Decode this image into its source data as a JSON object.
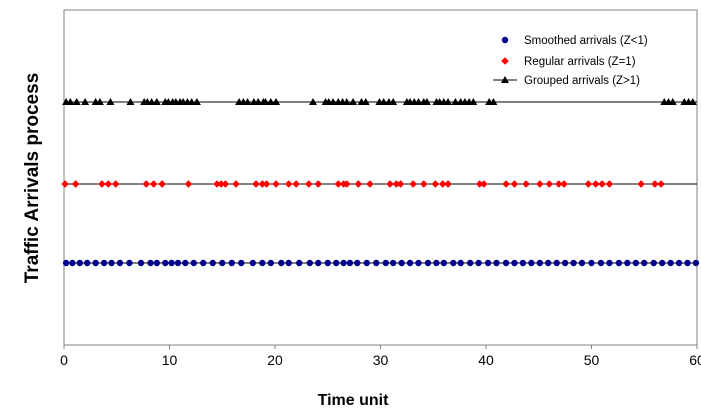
{
  "chart_data": {
    "type": "scatter",
    "title": "",
    "xlabel": "Time unit",
    "ylabel": "Traffic Arrivals process",
    "xlim": [
      0,
      60
    ],
    "xticks": [
      "0",
      "10",
      "20",
      "30",
      "40",
      "50",
      "60"
    ],
    "x_tick_values": [
      0,
      10,
      20,
      30,
      40,
      50,
      60
    ],
    "grid": false,
    "legend_position": "top-right",
    "series": [
      {
        "name": "Smoothed arrivals (Z<1)",
        "marker": "circle",
        "color": "#00008B",
        "line": true,
        "x": [
          0.2,
          0.8,
          1.5,
          2.2,
          3.0,
          3.8,
          4.5,
          5.3,
          6.2,
          7.3,
          8.2,
          8.8,
          9.6,
          10.2,
          10.8,
          11.5,
          12.3,
          13.2,
          14.1,
          15.0,
          15.9,
          16.8,
          17.9,
          18.8,
          19.6,
          20.6,
          21.3,
          22.3,
          23.3,
          24.1,
          25.0,
          25.8,
          26.5,
          27.1,
          27.8,
          28.7,
          29.6,
          30.5,
          31.2,
          32.0,
          32.8,
          33.6,
          34.5,
          35.3,
          36.0,
          36.9,
          37.6,
          38.5,
          39.3,
          40.2,
          41.0,
          41.9,
          42.7,
          43.5,
          44.3,
          45.1,
          45.9,
          46.7,
          47.5,
          48.3,
          49.1,
          50.0,
          50.9,
          51.7,
          52.6,
          53.4,
          54.2,
          55.0,
          55.9,
          56.7,
          57.5,
          58.3,
          59.1,
          59.9
        ],
        "y": 1
      },
      {
        "name": "Regular arrivals (Z=1)",
        "marker": "diamond",
        "color": "#FF0000",
        "line": true,
        "x": [
          0.1,
          1.1,
          3.6,
          4.2,
          4.9,
          7.8,
          8.5,
          9.3,
          11.8,
          14.5,
          14.9,
          15.3,
          16.3,
          18.2,
          18.8,
          19.2,
          20.1,
          21.3,
          22.0,
          23.2,
          24.1,
          26.0,
          26.5,
          26.8,
          27.9,
          29.0,
          30.9,
          31.5,
          31.9,
          33.1,
          34.1,
          35.2,
          35.9,
          36.4,
          39.4,
          39.8,
          41.9,
          42.7,
          43.8,
          45.1,
          46.0,
          46.9,
          47.4,
          49.7,
          50.4,
          51.0,
          51.7,
          54.7,
          56.0,
          56.6
        ],
        "y": 2
      },
      {
        "name": "Grouped arrivals (Z>1)",
        "marker": "triangle",
        "color": "#000000",
        "line": true,
        "x": [
          0.2,
          0.6,
          1.2,
          2.0,
          3.0,
          3.4,
          4.4,
          6.3,
          7.6,
          7.9,
          8.3,
          8.8,
          9.6,
          9.9,
          10.3,
          10.6,
          11.0,
          11.3,
          11.7,
          12.1,
          12.6,
          16.6,
          17.0,
          17.4,
          18.0,
          18.4,
          18.9,
          19.1,
          19.6,
          20.1,
          23.6,
          24.8,
          25.1,
          25.5,
          26.0,
          26.4,
          26.8,
          27.4,
          28.2,
          28.6,
          29.9,
          30.3,
          30.8,
          31.2,
          32.5,
          32.8,
          33.2,
          33.6,
          34.1,
          34.4,
          35.3,
          35.6,
          36.0,
          36.4,
          37.1,
          37.6,
          38.0,
          38.4,
          38.8,
          40.3,
          40.7,
          56.9,
          57.3,
          57.7,
          58.8,
          59.2,
          59.6
        ],
        "y": 3
      }
    ]
  }
}
